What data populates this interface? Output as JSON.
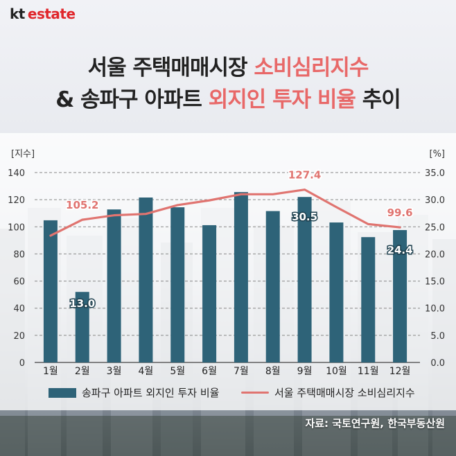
{
  "brand": {
    "kt": "kt",
    "estate": "estate"
  },
  "title": {
    "line1_a": "서울 주택매매시장 ",
    "line1_b": "소비심리지수",
    "line2_a": "& 송파구 아파트 ",
    "line2_b": "외지인 투자 비율",
    "line2_c": " 추이"
  },
  "colors": {
    "bar": "#2e6378",
    "line": "#e07470",
    "highlight": "#e86868"
  },
  "chart_data": {
    "type": "bar",
    "categories": [
      "1월",
      "2월",
      "3월",
      "4월",
      "5월",
      "6월",
      "7월",
      "8월",
      "9월",
      "10월",
      "11월",
      "12월"
    ],
    "left_axis": {
      "unit": "[지수]",
      "ylim": [
        0,
        140
      ],
      "ticks": [
        "0",
        "20",
        "40",
        "60",
        "80",
        "100",
        "120",
        "140"
      ]
    },
    "right_axis": {
      "unit": "[%]",
      "ylim": [
        0,
        35
      ],
      "ticks": [
        "0.0",
        "5.0",
        "10.0",
        "15.0",
        "20.0",
        "25.0",
        "30.0",
        "35.0"
      ]
    },
    "grid": "dashed horizontal",
    "series": [
      {
        "name": "송파구 아파트 외지인 투자 비율",
        "type": "bar",
        "axis": "right",
        "values": [
          26.2,
          13.0,
          28.2,
          30.4,
          28.6,
          25.3,
          31.4,
          27.9,
          30.5,
          25.8,
          23.1,
          24.4
        ]
      },
      {
        "name": "서울 주택매매시장 소비심리지수",
        "type": "line",
        "axis": "left",
        "values": [
          93.5,
          105.2,
          108.5,
          109.5,
          116.0,
          119.5,
          124.0,
          124.0,
          127.4,
          114.5,
          102.0,
          99.6
        ]
      }
    ],
    "data_labels": {
      "bar": [
        {
          "index": 1,
          "text": "13.0"
        },
        {
          "index": 8,
          "text": "30.5"
        },
        {
          "index": 11,
          "text": "24.4"
        }
      ],
      "line": [
        {
          "index": 1,
          "text": "105.2"
        },
        {
          "index": 8,
          "text": "127.4"
        },
        {
          "index": 11,
          "text": "99.6"
        }
      ]
    }
  },
  "legend": {
    "bar_label": "송파구 아파트 외지인 투자 비율",
    "line_label": "서울 주택매매시장 소비심리지수",
    "placement": "bottom"
  },
  "source": "자료: 국토연구원, 한국부동산원"
}
